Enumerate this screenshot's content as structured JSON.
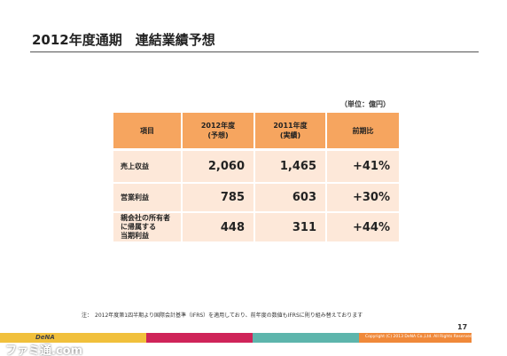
{
  "header": {
    "title": "2012年度通期　連結業績予想"
  },
  "unit": "（単位：億円）",
  "table": {
    "header": [
      [
        "項目"
      ],
      [
        "2012年度",
        "(予想)"
      ],
      [
        "2011年度",
        "(実績)"
      ],
      [
        "前期比"
      ]
    ],
    "rows": [
      {
        "label": [
          "売上収益"
        ],
        "cells": [
          "2,060",
          "1,465",
          "+41%"
        ]
      },
      {
        "label": [
          "営業利益"
        ],
        "cells": [
          "785",
          "603",
          "+30%"
        ]
      },
      {
        "label": [
          "親会社の所有者",
          "に帰属する",
          "当期利益"
        ],
        "cells": [
          "448",
          "311",
          "+44%"
        ]
      }
    ]
  },
  "note": "注：　2012年度第1四半期より国際会計基準（IFRS）を適用しており、前年度の数値もIFRSに則り組み替えております",
  "page_number": "17",
  "footer": {
    "logo": "DeNA",
    "copyright": "Copyright (C) 2013 DeNA Co.,Ltd. All Rights Reserved."
  },
  "watermark": "ファミ通.com"
}
